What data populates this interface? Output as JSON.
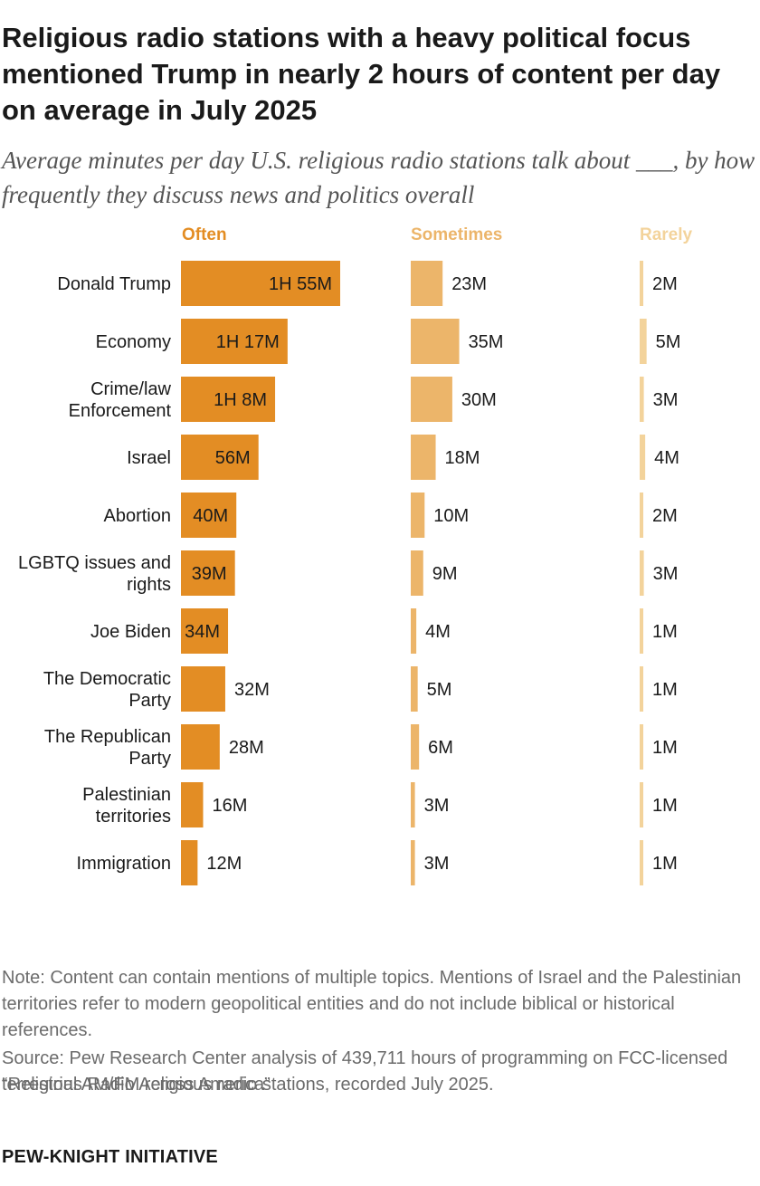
{
  "title": "Religious radio stations with a heavy political focus mentioned Trump in nearly 2 hours of content per day on average in July 2025",
  "subtitle": "Average minutes per day U.S. religious radio stations talk about ___, by how frequently they discuss news and politics overall",
  "note": "Note: Content can contain mentions of multiple topics. Mentions of Israel and the Palestinian territories refer to modern geopolitical entities and do not include biblical or historical references.",
  "source": "Source: Pew Research Center analysis of 439,711 hours of programming on FCC-licensed terrestrial AM/FM religious radio stations, recorded July 2025.",
  "report": "“Religious Radio Across America”",
  "brand": "PEW-KNIGHT INITIATIVE",
  "colors": {
    "often": "#e38d24",
    "sometimes": "#ecb56a",
    "rarely": "#f3d39b",
    "label_text": "#1a1a1a"
  },
  "chart_data": {
    "type": "bar",
    "orientation": "horizontal",
    "units": "minutes per day",
    "categories": [
      "Donald Trump",
      "Economy",
      "Crime/law Enforcement",
      "Israel",
      "Abortion",
      "LGBTQ issues and rights",
      "Joe Biden",
      "The Democratic Party",
      "The Republican Party",
      "Palestinian territories",
      "Immigration"
    ],
    "category_lines": [
      [
        "Donald Trump"
      ],
      [
        "Economy"
      ],
      [
        "Crime/law",
        "Enforcement"
      ],
      [
        "Israel"
      ],
      [
        "Abortion"
      ],
      [
        "LGBTQ issues and",
        "rights"
      ],
      [
        "Joe Biden"
      ],
      [
        "The Democratic",
        "Party"
      ],
      [
        "The Republican",
        "Party"
      ],
      [
        "Palestinian",
        "territories"
      ],
      [
        "Immigration"
      ]
    ],
    "series": [
      {
        "name": "Often",
        "values": [
          115,
          77,
          68,
          56,
          40,
          39,
          34,
          32,
          28,
          16,
          12
        ],
        "labels": [
          "1H 55M",
          "1H 17M",
          "1H 8M",
          "56M",
          "40M",
          "39M",
          "34M",
          "32M",
          "28M",
          "16M",
          "12M"
        ]
      },
      {
        "name": "Sometimes",
        "values": [
          23,
          35,
          30,
          18,
          10,
          9,
          4,
          5,
          6,
          3,
          3
        ],
        "labels": [
          "23M",
          "35M",
          "30M",
          "18M",
          "10M",
          "9M",
          "4M",
          "5M",
          "6M",
          "3M",
          "3M"
        ]
      },
      {
        "name": "Rarely",
        "values": [
          2,
          5,
          3,
          4,
          2,
          3,
          1,
          1,
          1,
          1,
          1
        ],
        "labels": [
          "2M",
          "5M",
          "3M",
          "4M",
          "2M",
          "3M",
          "1M",
          "1M",
          "1M",
          "1M",
          "1M"
        ]
      }
    ],
    "xlim": [
      0,
      120
    ],
    "grid": false,
    "legend": "column headers above each panel"
  }
}
